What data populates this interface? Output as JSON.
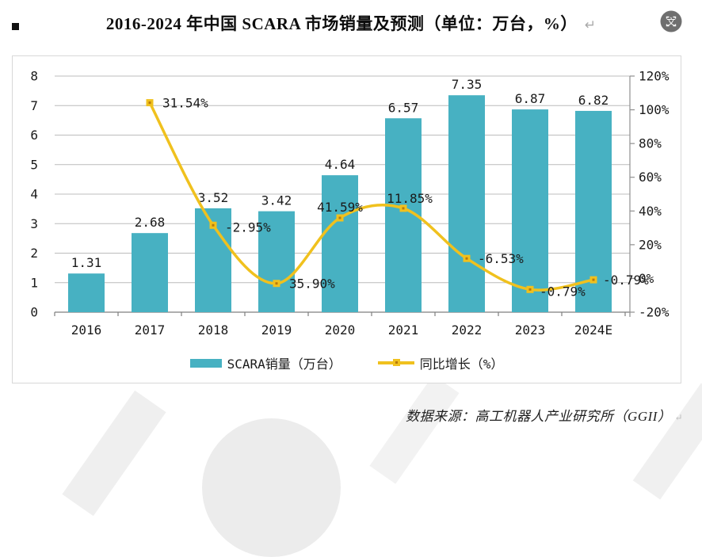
{
  "page": {
    "bullet_marker": "▪",
    "title_return_mark": "↵",
    "source_return_mark": "↵"
  },
  "title": {
    "text": "2016-2024 年中国 SCARA 市场销量及预测（单位：万台，%）"
  },
  "translate_button": {
    "glyph": "文"
  },
  "legend": {
    "bar_label": "SCARA销量（万台）",
    "line_label": "同比增长（%）"
  },
  "source": {
    "text": "数据来源：高工机器人产业研究所（GGII）"
  },
  "colors": {
    "bar": "#47b1c2",
    "line": "#f0c11e",
    "marker_center": "#b87a0c",
    "grid": "#bcbcbc",
    "axis": "#8f8f8f",
    "baseline": "#7f7f7f",
    "text": "#1a1a1a"
  },
  "chart_data": {
    "type": "bar",
    "subtype": "bar+line combo, dual axis",
    "title": "2016-2024 年中国 SCARA 市场销量及预测（单位：万台，%）",
    "categories": [
      "2016",
      "2017",
      "2018",
      "2019",
      "2020",
      "2021",
      "2022",
      "2023",
      "2024E"
    ],
    "series": [
      {
        "name": "SCARA销量（万台）",
        "type": "bar",
        "axis": "left",
        "values": [
          1.31,
          2.68,
          3.52,
          3.42,
          4.64,
          6.57,
          7.35,
          6.87,
          6.82
        ],
        "labels": [
          "1.31",
          "2.68",
          "3.52",
          "3.42",
          "4.64",
          "6.57",
          "7.35",
          "6.87",
          "6.82"
        ]
      },
      {
        "name": "同比增长（%）",
        "type": "line",
        "axis": "right",
        "values": [
          null,
          104.21,
          31.54,
          -2.95,
          35.9,
          41.59,
          11.85,
          -6.53,
          -0.79
        ],
        "labels": [
          "104.21%",
          "31.54%",
          "-2.95%",
          "35.90%",
          "41.59%",
          "11.85%",
          "-6.53%",
          "-0.79%"
        ]
      }
    ],
    "left_axis": {
      "min": 0,
      "max": 8,
      "step": 1,
      "tick_labels": [
        "0",
        "1",
        "2",
        "3",
        "4",
        "5",
        "6",
        "7",
        "8"
      ]
    },
    "right_axis": {
      "min": -20,
      "max": 120,
      "step": 20,
      "tick_labels": [
        "-20%",
        "0%",
        "20%",
        "40%",
        "60%",
        "80%",
        "100%",
        "120%"
      ]
    },
    "grid": true,
    "legend_position": "bottom",
    "source": "数据来源：高工机器人产业研究所（GGII）"
  }
}
